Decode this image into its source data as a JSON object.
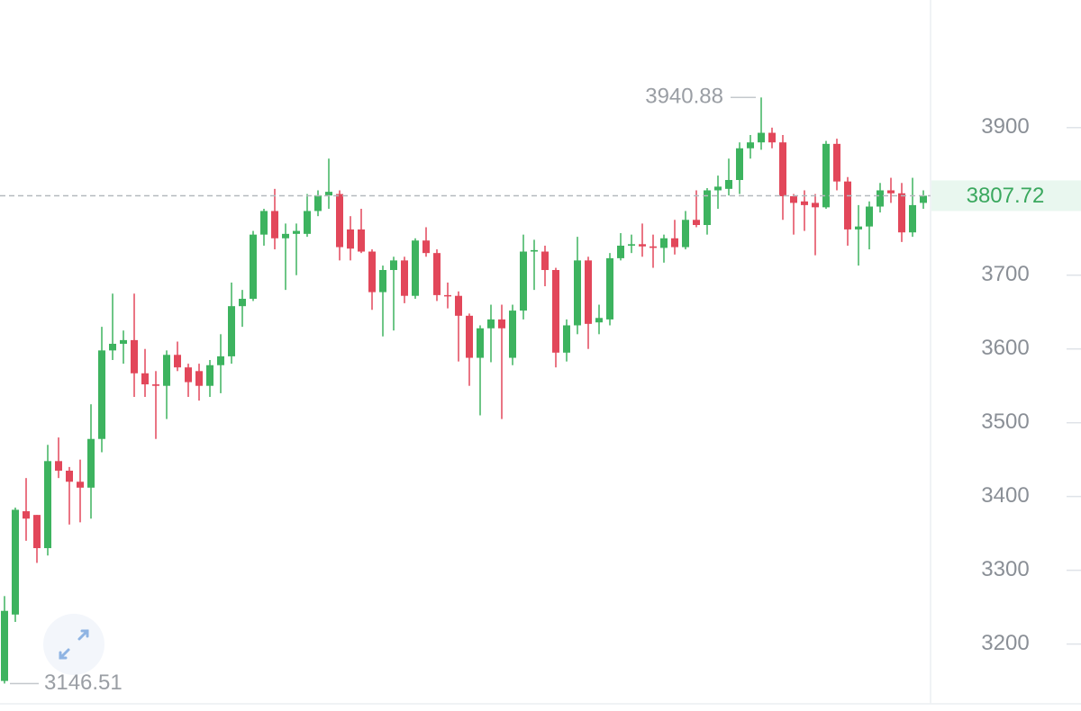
{
  "chart_data": {
    "type": "candlestick",
    "up_color": "#3db35f",
    "down_color": "#e2475a",
    "open": [
      3150,
      3240,
      3380,
      3375,
      3330,
      3448,
      3435,
      3420,
      3412,
      3478,
      3598,
      3607,
      3612,
      3567,
      3552,
      3550,
      3592,
      3575,
      3570,
      3550,
      3578,
      3590,
      3658,
      3668,
      3755,
      3787,
      3750,
      3756,
      3756,
      3787,
      3808,
      3810,
      3762,
      3762,
      3732,
      3677,
      3707,
      3720,
      3672,
      3747,
      3730,
      3673,
      3672,
      3645,
      3588,
      3628,
      3640,
      3588,
      3652,
      3732,
      3732,
      3707,
      3595,
      3632,
      3720,
      3636,
      3640,
      3723,
      3740,
      3742,
      3739,
      3737,
      3750,
      3738,
      3775,
      3768,
      3815,
      3817,
      3829,
      3872,
      3880,
      3893,
      3880,
      3807,
      3800,
      3798,
      3792,
      3878,
      3827,
      3762,
      3766,
      3793,
      3815,
      3811,
      3758,
      3798
    ],
    "high": [
      3265,
      3385,
      3425,
      3375,
      3470,
      3480,
      3440,
      3450,
      3525,
      3630,
      3675,
      3625,
      3675,
      3600,
      3570,
      3598,
      3610,
      3580,
      3580,
      3585,
      3620,
      3690,
      3680,
      3760,
      3790,
      3817,
      3770,
      3770,
      3810,
      3815,
      3858,
      3815,
      3780,
      3790,
      3735,
      3713,
      3725,
      3725,
      3750,
      3765,
      3735,
      3690,
      3678,
      3648,
      3632,
      3660,
      3660,
      3660,
      3755,
      3748,
      3740,
      3710,
      3640,
      3752,
      3725,
      3660,
      3730,
      3757,
      3755,
      3770,
      3755,
      3755,
      3775,
      3787,
      3815,
      3818,
      3835,
      3858,
      3880,
      3890,
      3940.88,
      3900,
      3890,
      3810,
      3815,
      3810,
      3882,
      3885,
      3833,
      3795,
      3800,
      3825,
      3832,
      3825,
      3832,
      3815
    ],
    "low": [
      3146.51,
      3230,
      3340,
      3310,
      3320,
      3425,
      3362,
      3365,
      3370,
      3460,
      3585,
      3580,
      3535,
      3535,
      3478,
      3505,
      3570,
      3535,
      3530,
      3535,
      3540,
      3580,
      3630,
      3665,
      3740,
      3735,
      3680,
      3700,
      3752,
      3780,
      3790,
      3720,
      3720,
      3730,
      3653,
      3617,
      3625,
      3662,
      3668,
      3725,
      3665,
      3655,
      3583,
      3550,
      3510,
      3582,
      3505,
      3578,
      3640,
      3680,
      3685,
      3575,
      3583,
      3620,
      3600,
      3620,
      3632,
      3720,
      3730,
      3725,
      3710,
      3717,
      3728,
      3735,
      3765,
      3755,
      3790,
      3808,
      3810,
      3858,
      3870,
      3872,
      3775,
      3755,
      3760,
      3727,
      3790,
      3815,
      3740,
      3713,
      3735,
      3785,
      3798,
      3745,
      3752,
      3790
    ],
    "close": [
      3245,
      3382,
      3370,
      3330,
      3448,
      3435,
      3420,
      3412,
      3478,
      3598,
      3607,
      3612,
      3567,
      3552,
      3550,
      3592,
      3575,
      3555,
      3550,
      3578,
      3590,
      3658,
      3668,
      3755,
      3787,
      3750,
      3756,
      3760,
      3787,
      3808,
      3813,
      3738,
      3736,
      3732,
      3677,
      3707,
      3720,
      3672,
      3747,
      3730,
      3673,
      3672,
      3645,
      3588,
      3628,
      3640,
      3628,
      3652,
      3732,
      3734,
      3707,
      3595,
      3632,
      3720,
      3634,
      3642,
      3723,
      3740,
      3742,
      3739,
      3737,
      3750,
      3738,
      3775,
      3768,
      3815,
      3820,
      3829,
      3872,
      3880,
      3893,
      3880,
      3807,
      3798,
      3795,
      3792,
      3878,
      3827,
      3762,
      3766,
      3793,
      3815,
      3811,
      3758,
      3795,
      3807.72
    ],
    "ylim": [
      3119,
      4073
    ],
    "yticks": [
      3200,
      3300,
      3400,
      3500,
      3600,
      3700,
      3800,
      3900
    ],
    "last_price_label": 3807.72
  }
}
